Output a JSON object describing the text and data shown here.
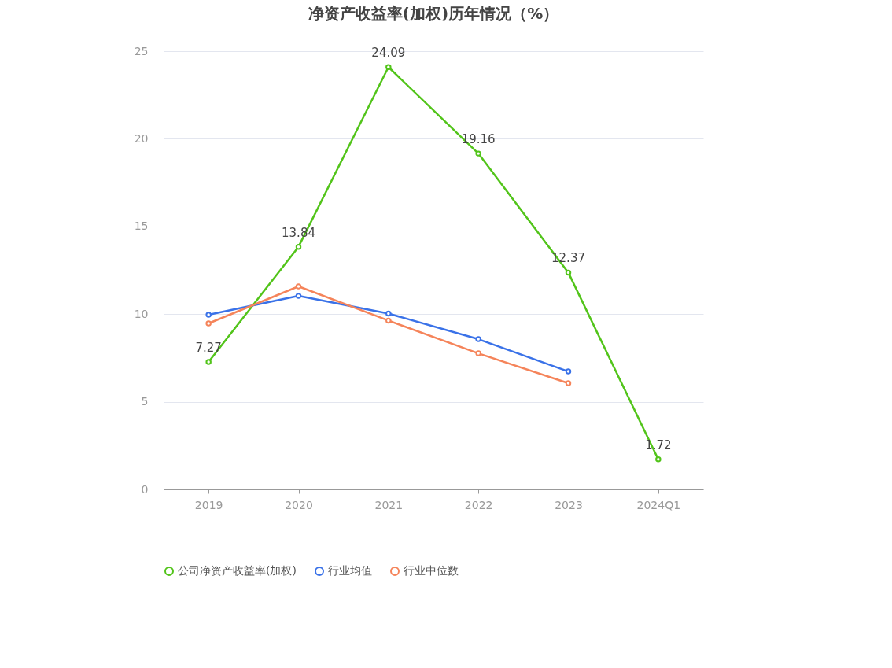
{
  "chart_data": {
    "type": "line",
    "title": "净资产收益率(加权)历年情况（%）",
    "categories": [
      "2019",
      "2020",
      "2021",
      "2022",
      "2023",
      "2024Q1"
    ],
    "series": [
      {
        "name": "公司净资产收益率(加权)",
        "color": "#52c41a",
        "values": [
          7.27,
          13.84,
          24.09,
          19.16,
          12.37,
          1.72
        ],
        "value_labels": [
          "7.27",
          "13.84",
          "24.09",
          "19.16",
          "12.37",
          "1.72"
        ]
      },
      {
        "name": "行业均值",
        "color": "#3a72e8",
        "values": [
          9.96,
          11.04,
          10.03,
          8.57,
          6.73,
          null
        ]
      },
      {
        "name": "行业中位数",
        "color": "#f5845a",
        "values": [
          9.47,
          11.58,
          9.63,
          7.76,
          6.06,
          null
        ]
      }
    ],
    "ylim": [
      0,
      25
    ],
    "yticks": [
      0,
      5,
      10,
      15,
      20,
      25
    ],
    "grid": "y",
    "legend": "bottom",
    "marker": "circle",
    "line_style": "solid"
  }
}
